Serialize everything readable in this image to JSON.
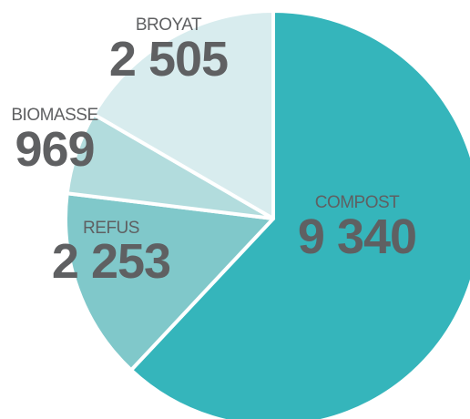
{
  "chart_data": {
    "type": "pie",
    "categories": [
      "COMPOST",
      "REFUS",
      "BIOMASSE",
      "BROYAT"
    ],
    "values": [
      9340,
      2253,
      969,
      2505
    ],
    "value_labels": [
      "9 340",
      "2 253",
      "969",
      "2 505"
    ],
    "colors": [
      "#35b5bb",
      "#80c8ca",
      "#b2dcdd",
      "#d8ecee"
    ]
  }
}
